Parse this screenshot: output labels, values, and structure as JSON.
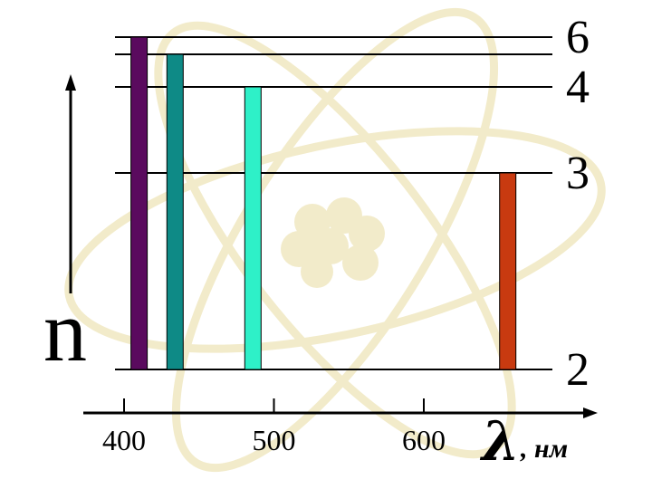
{
  "diagram": {
    "y_axis_label": "n",
    "x_axis_symbol": "λ",
    "x_axis_unit": ", нм",
    "colors": {
      "background_watermark": "#e8dca0",
      "axis": "#000000"
    },
    "levels": [
      {
        "n": 2,
        "label": "2"
      },
      {
        "n": 3,
        "label": "3"
      },
      {
        "n": 4,
        "label": "4"
      },
      {
        "n": 5,
        "label": ""
      },
      {
        "n": 6,
        "label": "6"
      }
    ],
    "x_ticks": [
      {
        "value": 400,
        "label": "400"
      },
      {
        "value": 500,
        "label": "500"
      },
      {
        "value": 600,
        "label": "600"
      }
    ],
    "transitions": [
      {
        "from_n": 6,
        "to_n": 2,
        "wavelength_nm": 410,
        "color": "#5a0a5e"
      },
      {
        "from_n": 5,
        "to_n": 2,
        "wavelength_nm": 434,
        "color": "#0e8a86"
      },
      {
        "from_n": 4,
        "to_n": 2,
        "wavelength_nm": 486,
        "color": "#2ef0c8"
      },
      {
        "from_n": 3,
        "to_n": 2,
        "wavelength_nm": 656,
        "color": "#c83a10"
      }
    ]
  }
}
